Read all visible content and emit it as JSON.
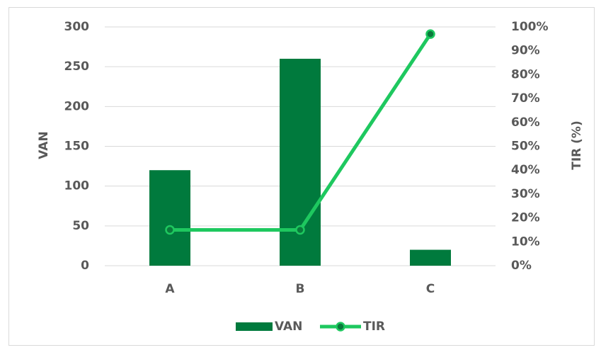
{
  "chart_data": {
    "type": "bar",
    "categories": [
      "A",
      "B",
      "C"
    ],
    "series": [
      {
        "name": "VAN",
        "type": "bar",
        "color": "#007a3d",
        "values": [
          120,
          260,
          20
        ]
      },
      {
        "name": "TIR",
        "type": "line",
        "axis": "y2",
        "color": "#1ec85f",
        "marker_color": "#0a7a3c",
        "values": [
          15,
          15,
          97
        ]
      }
    ],
    "ylabel": "VAN",
    "y2label": "TIR (%)",
    "ylim": [
      0,
      300
    ],
    "yticks": [
      0,
      50,
      100,
      150,
      200,
      250,
      300
    ],
    "y2lim": [
      0,
      100
    ],
    "y2ticks": [
      {
        "value": 0,
        "label": "0%"
      },
      {
        "value": 10,
        "label": "10%"
      },
      {
        "value": 20,
        "label": "20%"
      },
      {
        "value": 30,
        "label": "30%"
      },
      {
        "value": 40,
        "label": "40%"
      },
      {
        "value": 50,
        "label": "50%"
      },
      {
        "value": 60,
        "label": "60%"
      },
      {
        "value": 70,
        "label": "70%"
      },
      {
        "value": 80,
        "label": "80%"
      },
      {
        "value": 90,
        "label": "90%"
      },
      {
        "value": 100,
        "label": "100%"
      }
    ],
    "grid": true,
    "legend": "bottom"
  }
}
